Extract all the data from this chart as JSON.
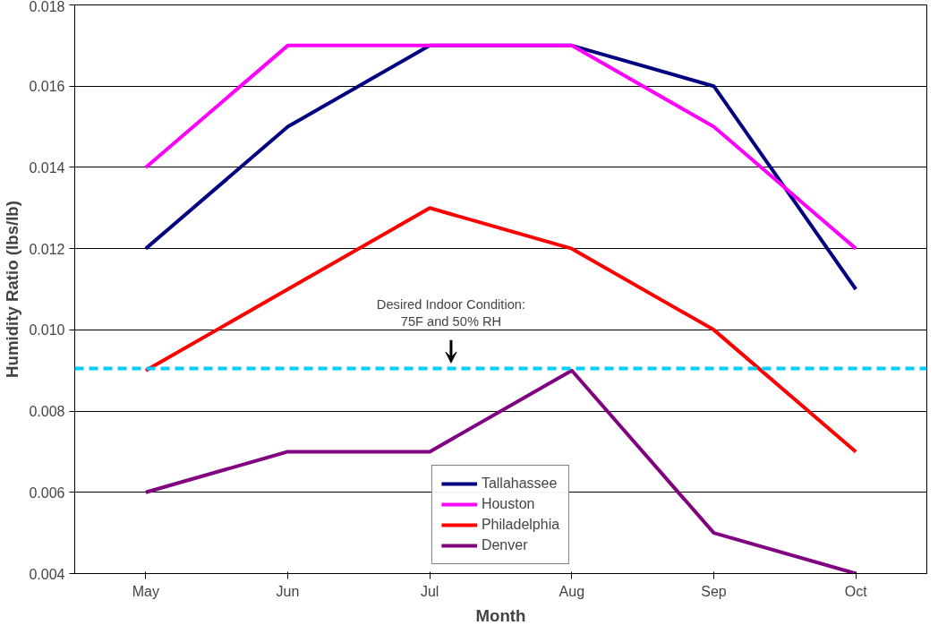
{
  "chart_data": {
    "type": "line",
    "xlabel": "Month",
    "ylabel": "Humidity Ratio (lbs/lb)",
    "categories": [
      "May",
      "Jun",
      "Jul",
      "Aug",
      "Sep",
      "Oct"
    ],
    "series": [
      {
        "name": "Tallahassee",
        "color": "#000080",
        "values": [
          0.012,
          0.015,
          0.017,
          0.017,
          0.016,
          0.011
        ]
      },
      {
        "name": "Houston",
        "color": "#ff00ff",
        "values": [
          0.014,
          0.017,
          0.017,
          0.017,
          0.015,
          0.012
        ]
      },
      {
        "name": "Philadelphia",
        "color": "#ff0000",
        "values": [
          0.009,
          0.011,
          0.013,
          0.012,
          0.01,
          0.007
        ]
      },
      {
        "name": "Denver",
        "color": "#800080",
        "values": [
          0.006,
          0.007,
          0.007,
          0.009,
          0.005,
          0.004
        ]
      }
    ],
    "ylim": [
      0.004,
      0.018
    ],
    "yticks": [
      {
        "value": 0.004,
        "label": "0.004"
      },
      {
        "value": 0.006,
        "label": "0.006"
      },
      {
        "value": 0.008,
        "label": "0.008"
      },
      {
        "value": 0.01,
        "label": "0.010"
      },
      {
        "value": 0.012,
        "label": "0.012"
      },
      {
        "value": 0.014,
        "label": "0.014"
      },
      {
        "value": 0.016,
        "label": "0.016"
      },
      {
        "value": 0.018,
        "label": "0.018"
      }
    ],
    "ref_lines": [
      {
        "axis": "y",
        "value": 0.00905,
        "color": "#00ccff",
        "line_style": "dashed"
      }
    ],
    "annotations": [
      "Desired Indoor Condition:\n75F and 50% RH"
    ],
    "grid": "y",
    "legend": "bottom",
    "marker": "none",
    "line_style": "solid"
  }
}
